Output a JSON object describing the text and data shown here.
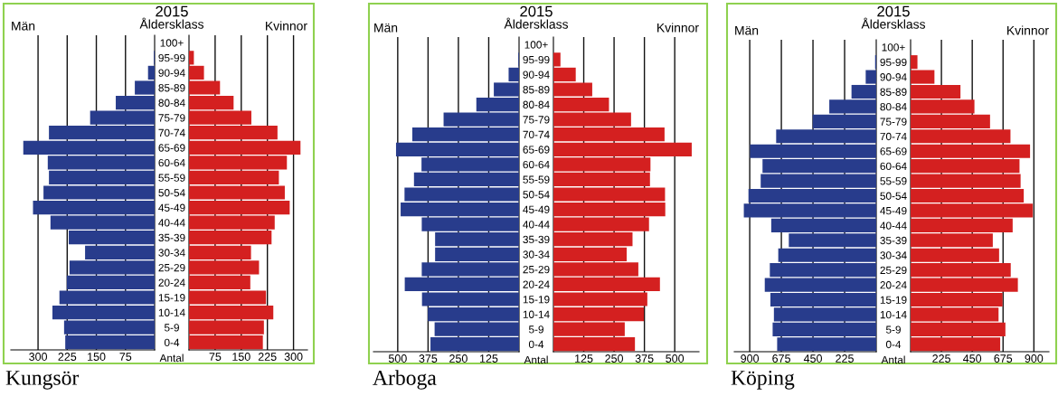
{
  "chart_data": [
    {
      "type": "bar",
      "orientation": "horizontal",
      "title": "Män",
      "categories": [
        "100+",
        "95-99",
        "90-94",
        "85-89",
        "80-84",
        "75-79",
        "70-74",
        "65-69",
        "60-64",
        "55-59",
        "50-54",
        "45-49",
        "40-44",
        "35-39",
        "30-34",
        "25-29",
        "20-24",
        "15-19",
        "10-14",
        "5-9",
        "0-4"
      ],
      "color": "#283c8c",
      "values": [
        0,
        2,
        17,
        51,
        100,
        166,
        272,
        338,
        275,
        272,
        286,
        313,
        268,
        221,
        179,
        219,
        226,
        245,
        263,
        233,
        230
      ],
      "xlim": [
        370,
        0
      ],
      "xticks": [
        300,
        225,
        150,
        75
      ],
      "grid": "x",
      "annotations": [
        "2015",
        "Åldersklass",
        "Antal",
        "Kungsör"
      ]
    },
    {
      "type": "bar",
      "orientation": "horizontal",
      "title": "Kvinnor",
      "tick_labels": "x",
      "color": "#d42020",
      "values": [
        0,
        14,
        43,
        89,
        128,
        179,
        254,
        320,
        281,
        258,
        275,
        289,
        246,
        237,
        178,
        201,
        176,
        221,
        242,
        215,
        212
      ],
      "xlim": [
        0,
        340
      ],
      "xticks": [
        75,
        150,
        225,
        300
      ],
      "grid": "x"
    },
    {
      "type": "bar",
      "orientation": "horizontal",
      "title": "Män",
      "categories": [
        "100+",
        "95-99",
        "90-94",
        "85-89",
        "80-84",
        "75-79",
        "70-74",
        "65-69",
        "60-64",
        "55-59",
        "50-54",
        "45-49",
        "40-44",
        "35-39",
        "30-34",
        "25-29",
        "20-24",
        "15-19",
        "10-14",
        "5-9",
        "0-4"
      ],
      "color": "#283c8c",
      "values": [
        0,
        3,
        43,
        104,
        176,
        311,
        440,
        507,
        402,
        433,
        472,
        488,
        401,
        346,
        346,
        401,
        471,
        400,
        376,
        348,
        365
      ],
      "xlim": [
        600,
        0
      ],
      "xticks": [
        500,
        375,
        250,
        125
      ],
      "grid": "x",
      "annotations": [
        "2015",
        "Åldersklass",
        "Antal",
        "Arboga"
      ]
    },
    {
      "type": "bar",
      "orientation": "horizontal",
      "title": "Kvinnor",
      "tick_labels": "x",
      "color": "#d42020",
      "values": [
        0,
        29,
        92,
        160,
        229,
        320,
        458,
        570,
        400,
        398,
        460,
        461,
        394,
        326,
        302,
        350,
        439,
        387,
        373,
        294,
        336
      ],
      "xlim": [
        0,
        600
      ],
      "xticks": [
        125,
        250,
        375,
        500
      ],
      "grid": "x"
    },
    {
      "type": "bar",
      "orientation": "horizontal",
      "title": "Män",
      "categories": [
        "100+",
        "95-99",
        "90-94",
        "85-89",
        "80-84",
        "75-79",
        "70-74",
        "65-69",
        "60-64",
        "55-59",
        "50-54",
        "45-49",
        "40-44",
        "35-39",
        "30-34",
        "25-29",
        "20-24",
        "15-19",
        "10-14",
        "5-9",
        "0-4"
      ],
      "color": "#283c8c",
      "values": [
        0,
        8,
        75,
        176,
        334,
        452,
        712,
        898,
        809,
        822,
        909,
        942,
        747,
        622,
        697,
        757,
        793,
        753,
        728,
        737,
        705
      ],
      "xlim": [
        1010,
        0
      ],
      "xticks": [
        900,
        675,
        450,
        225
      ],
      "grid": "x",
      "annotations": [
        "2015",
        "Åldersklass",
        "Antal",
        "Köping"
      ]
    },
    {
      "type": "bar",
      "orientation": "horizontal",
      "title": "Kvinnor",
      "tick_labels": "x",
      "color": "#d42020",
      "values": [
        0,
        50,
        174,
        364,
        466,
        580,
        729,
        872,
        795,
        803,
        826,
        892,
        745,
        600,
        646,
        731,
        783,
        671,
        642,
        692,
        654
      ],
      "xlim": [
        0,
        1010
      ],
      "xticks": [
        225,
        450,
        675,
        900
      ],
      "grid": "x"
    }
  ]
}
